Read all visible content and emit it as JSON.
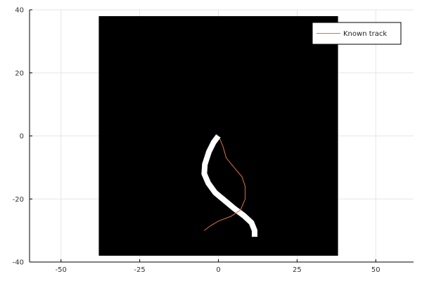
{
  "chart_data": {
    "type": "line",
    "title": "",
    "xlabel": "",
    "ylabel": "",
    "xlim": [
      -60,
      62
    ],
    "ylim": [
      -40,
      40
    ],
    "x_ticks": [
      -50,
      -25,
      0,
      25,
      50
    ],
    "y_ticks": [
      40,
      20,
      0,
      -20,
      -40
    ],
    "x_tick_labels": [
      "-50",
      "-25",
      "0",
      "25",
      "50"
    ],
    "y_tick_labels": [
      "40",
      "20",
      "0",
      "-20",
      "-40"
    ],
    "grid": true,
    "legend_position": "top-right",
    "background_image": {
      "description": "black square field with white curved path",
      "extent_x": [
        -38,
        38
      ],
      "extent_y": [
        -38,
        38
      ],
      "fill_color": "#000000",
      "path_color": "#ffffff",
      "path": [
        {
          "x": 0,
          "y": 0
        },
        {
          "x": -1.5,
          "y": -2
        },
        {
          "x": -3,
          "y": -5
        },
        {
          "x": -4.3,
          "y": -9
        },
        {
          "x": -4.5,
          "y": -12
        },
        {
          "x": -3.2,
          "y": -15
        },
        {
          "x": -1,
          "y": -18
        },
        {
          "x": 2,
          "y": -20.5
        },
        {
          "x": 5,
          "y": -23
        },
        {
          "x": 8,
          "y": -25.2
        },
        {
          "x": 10.5,
          "y": -27.5
        },
        {
          "x": 11.5,
          "y": -30
        },
        {
          "x": 11.5,
          "y": -32
        }
      ]
    },
    "series": [
      {
        "name": "Known track",
        "color": "#e26f46",
        "points": [
          {
            "x": 0.5,
            "y": -1
          },
          {
            "x": 1.5,
            "y": -3.5
          },
          {
            "x": 2.5,
            "y": -7
          },
          {
            "x": 5,
            "y": -10
          },
          {
            "x": 7.5,
            "y": -13
          },
          {
            "x": 8.5,
            "y": -16
          },
          {
            "x": 8.5,
            "y": -20
          },
          {
            "x": 7,
            "y": -23.5
          },
          {
            "x": 4,
            "y": -25.5
          },
          {
            "x": 0,
            "y": -27
          },
          {
            "x": -2.5,
            "y": -28.5
          },
          {
            "x": -4.5,
            "y": -30
          }
        ]
      }
    ]
  }
}
